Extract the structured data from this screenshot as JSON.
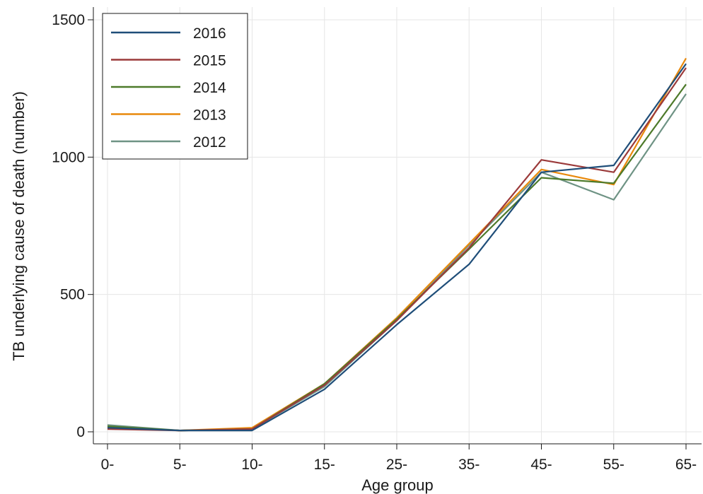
{
  "chart_data": {
    "type": "line",
    "title": "",
    "xlabel": "Age group",
    "ylabel": "TB underlying cause of death (number)",
    "categories": [
      "0-",
      "5-",
      "10-",
      "15-",
      "25-",
      "35-",
      "45-",
      "55-",
      "65-"
    ],
    "ylim": [
      0,
      1500
    ],
    "yticks": [
      0,
      500,
      1000,
      1500
    ],
    "grid": true,
    "legend_position": "top-left",
    "series": [
      {
        "name": "2016",
        "color": "#1f4e79",
        "values": [
          15,
          5,
          5,
          155,
          390,
          610,
          945,
          970,
          1340
        ]
      },
      {
        "name": "2015",
        "color": "#9b3a3a",
        "values": [
          10,
          5,
          10,
          170,
          405,
          670,
          990,
          945,
          1325
        ]
      },
      {
        "name": "2014",
        "color": "#4d7a2a",
        "values": [
          20,
          5,
          10,
          175,
          410,
          665,
          925,
          905,
          1265
        ]
      },
      {
        "name": "2013",
        "color": "#e8890c",
        "values": [
          15,
          5,
          15,
          175,
          415,
          685,
          955,
          900,
          1360
        ]
      },
      {
        "name": "2012",
        "color": "#6e9384",
        "values": [
          25,
          5,
          10,
          165,
          405,
          680,
          945,
          845,
          1230
        ]
      }
    ]
  }
}
